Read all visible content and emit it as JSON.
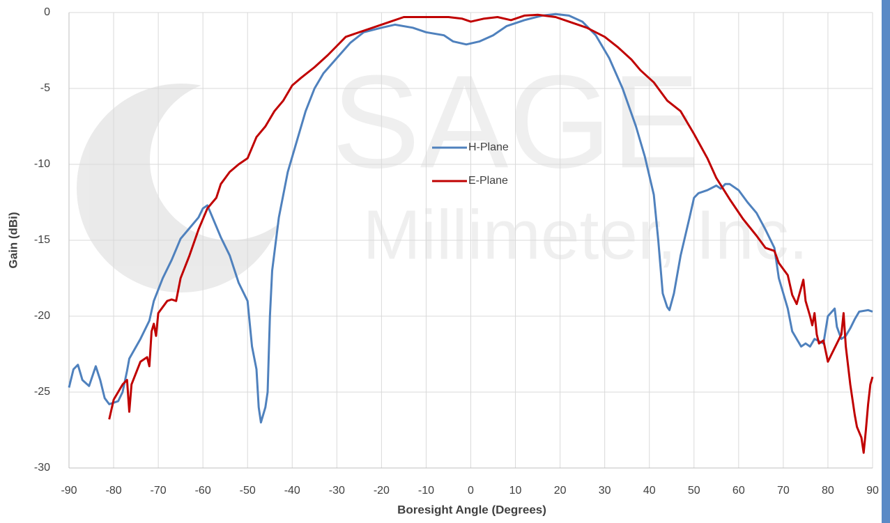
{
  "chart_data": {
    "type": "line",
    "x_label": "Boresight Angle (Degrees)",
    "y_label": "Gain (dBi)",
    "watermark": [
      "SAGE",
      "Millimeter, Inc."
    ],
    "xlim": [
      -90,
      90
    ],
    "xticks": [
      -90,
      -80,
      -70,
      -60,
      -50,
      -40,
      -30,
      -20,
      -10,
      0,
      10,
      20,
      30,
      40,
      50,
      60,
      70,
      80,
      90
    ],
    "ylim": [
      -30,
      0
    ],
    "yticks": [
      0,
      -5,
      -10,
      -15,
      -20,
      -25,
      -30
    ],
    "grid": true,
    "legend_position": "center",
    "series": [
      {
        "name": "H-Plane",
        "color": "#4f81bd",
        "x": [
          -90,
          -89,
          -88,
          -87,
          -85.5,
          -84,
          -83,
          -82,
          -81,
          -79,
          -78,
          -77,
          -76.5,
          -74,
          -72,
          -71,
          -69,
          -67,
          -65,
          -63,
          -61,
          -60,
          -59,
          -58,
          -56,
          -54,
          -52,
          -50,
          -49,
          -48,
          -47.5,
          -47,
          -46,
          -45.5,
          -45,
          -44.5,
          -43,
          -41,
          -39,
          -37,
          -35,
          -33,
          -30,
          -27,
          -24,
          -20,
          -17,
          -13,
          -10,
          -6,
          -4,
          -1,
          2,
          5,
          8,
          12,
          16,
          19,
          22,
          25,
          28,
          31,
          34,
          37,
          39,
          41,
          42,
          43,
          44,
          44.5,
          45.5,
          47,
          49,
          50,
          51,
          53,
          55,
          56,
          57,
          58,
          60,
          62,
          64,
          66,
          68,
          69,
          71,
          72,
          74,
          75,
          76,
          77,
          79,
          80,
          81.5,
          82,
          83,
          84,
          85,
          86,
          87,
          89,
          90
        ],
        "values": [
          -24.7,
          -23.5,
          -23.2,
          -24.2,
          -24.6,
          -23.3,
          -24.2,
          -25.4,
          -25.8,
          -25.6,
          -25.0,
          -23.6,
          -22.8,
          -21.5,
          -20.3,
          -19.0,
          -17.5,
          -16.3,
          -14.9,
          -14.2,
          -13.5,
          -12.9,
          -12.7,
          -13.4,
          -14.8,
          -16.0,
          -17.8,
          -19.0,
          -22.0,
          -23.5,
          -26.0,
          -27.0,
          -26.0,
          -25.0,
          -20.0,
          -17.0,
          -13.5,
          -10.5,
          -8.5,
          -6.5,
          -5.0,
          -4.0,
          -3.0,
          -2.0,
          -1.3,
          -1.0,
          -0.8,
          -1.0,
          -1.3,
          -1.5,
          -1.9,
          -2.1,
          -1.9,
          -1.5,
          -0.9,
          -0.5,
          -0.2,
          -0.1,
          -0.2,
          -0.6,
          -1.5,
          -3.0,
          -5.0,
          -7.5,
          -9.5,
          -12.0,
          -15.0,
          -18.5,
          -19.4,
          -19.6,
          -18.5,
          -16.0,
          -13.5,
          -12.2,
          -11.9,
          -11.7,
          -11.4,
          -11.6,
          -11.3,
          -11.3,
          -11.7,
          -12.5,
          -13.2,
          -14.3,
          -15.5,
          -17.5,
          -19.5,
          -21.0,
          -22.0,
          -21.8,
          -22.0,
          -21.5,
          -21.8,
          -20.0,
          -19.5,
          -20.7,
          -21.5,
          -21.3,
          -20.8,
          -20.2,
          -19.7,
          -19.6,
          -19.7
        ]
      },
      {
        "name": "E-Plane",
        "color": "#c00000",
        "x": [
          -81,
          -80,
          -78,
          -77,
          -76.5,
          -76,
          -74,
          -72.5,
          -72,
          -71.5,
          -71,
          -70.5,
          -70,
          -68,
          -67,
          -66,
          -65,
          -63,
          -61,
          -59,
          -57,
          -56,
          -54,
          -52,
          -50,
          -48,
          -46,
          -44,
          -42,
          -40,
          -38,
          -35,
          -32,
          -30,
          -28,
          -25,
          -22,
          -18,
          -15,
          -12,
          -5,
          -2,
          0,
          3,
          6,
          9,
          12,
          15,
          19,
          22,
          26,
          30,
          33,
          36,
          38,
          41,
          42,
          44,
          47,
          50,
          53,
          55,
          58,
          61,
          64,
          66,
          68,
          69,
          71,
          72,
          73,
          74.5,
          75,
          76,
          76.5,
          77,
          77.5,
          78,
          79,
          80,
          81,
          82,
          83,
          83.5,
          84,
          85,
          86,
          86.5,
          87.5,
          88,
          88.5,
          89,
          89.5,
          90
        ],
        "values": [
          -26.8,
          -25.5,
          -24.5,
          -24.2,
          -26.3,
          -24.5,
          -23.0,
          -22.7,
          -23.3,
          -21.0,
          -20.5,
          -21.3,
          -19.8,
          -19.0,
          -18.9,
          -19.0,
          -17.5,
          -16.0,
          -14.3,
          -12.9,
          -12.2,
          -11.3,
          -10.5,
          -10.0,
          -9.6,
          -8.2,
          -7.5,
          -6.5,
          -5.8,
          -4.8,
          -4.3,
          -3.6,
          -2.8,
          -2.2,
          -1.6,
          -1.3,
          -1.0,
          -0.6,
          -0.3,
          -0.3,
          -0.3,
          -0.4,
          -0.6,
          -0.4,
          -0.3,
          -0.5,
          -0.2,
          -0.15,
          -0.3,
          -0.6,
          -1.0,
          -1.6,
          -2.3,
          -3.1,
          -3.8,
          -4.6,
          -5.0,
          -5.8,
          -6.5,
          -8.0,
          -9.6,
          -10.9,
          -12.3,
          -13.6,
          -14.7,
          -15.5,
          -15.7,
          -16.5,
          -17.3,
          -18.6,
          -19.2,
          -17.6,
          -19.0,
          -20.0,
          -20.6,
          -19.8,
          -21.2,
          -21.8,
          -21.6,
          -23.0,
          -22.4,
          -21.8,
          -21.2,
          -19.8,
          -22.0,
          -24.5,
          -26.5,
          -27.3,
          -28.0,
          -29.0,
          -27.5,
          -25.8,
          -24.5,
          -24.0
        ]
      }
    ]
  }
}
